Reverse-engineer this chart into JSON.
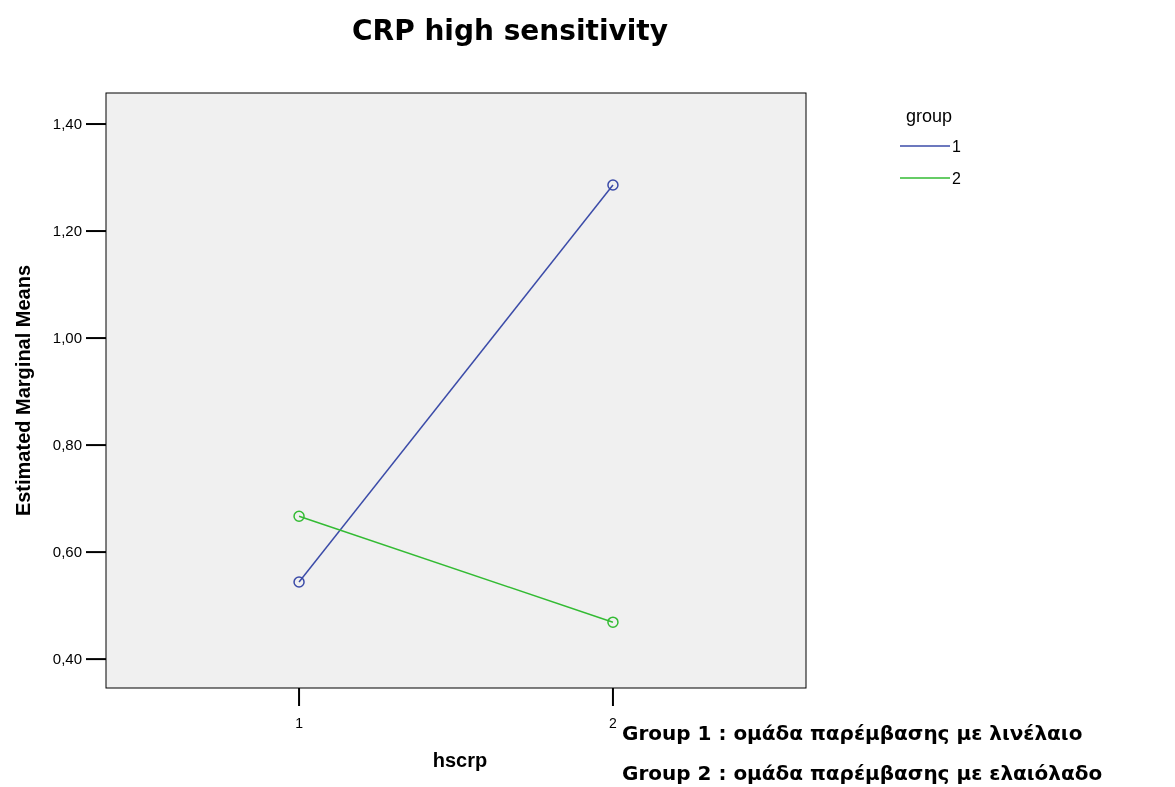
{
  "chart_data": {
    "type": "line",
    "title": "CRP high sensitivity",
    "xlabel": "hscrp",
    "ylabel": "Estimated Marginal Means",
    "legend_title": "group",
    "categories": [
      "1",
      "2"
    ],
    "series": [
      {
        "name": "1",
        "color": "#3b4ba8",
        "values": [
          0.544,
          1.286
        ]
      },
      {
        "name": "2",
        "color": "#33bb33",
        "values": [
          0.667,
          0.469
        ]
      }
    ],
    "ylim": [
      0.346,
      1.458
    ],
    "yticks": [
      {
        "value": 0.4,
        "label": "0,40"
      },
      {
        "value": 0.6,
        "label": "0,60"
      },
      {
        "value": 0.8,
        "label": "0,80"
      },
      {
        "value": 1.0,
        "label": "1,00"
      },
      {
        "value": 1.2,
        "label": "1,20"
      },
      {
        "value": 1.4,
        "label": "1,40"
      }
    ],
    "marker": "circle",
    "line_style": "solid",
    "grid": false,
    "legend": "top right",
    "annotations": [
      "Group 1 :  ομάδα παρέμβασης με λινέλαιο",
      "Group 2 : ομάδα παρέμβασης με ελαιόλαδο"
    ]
  }
}
